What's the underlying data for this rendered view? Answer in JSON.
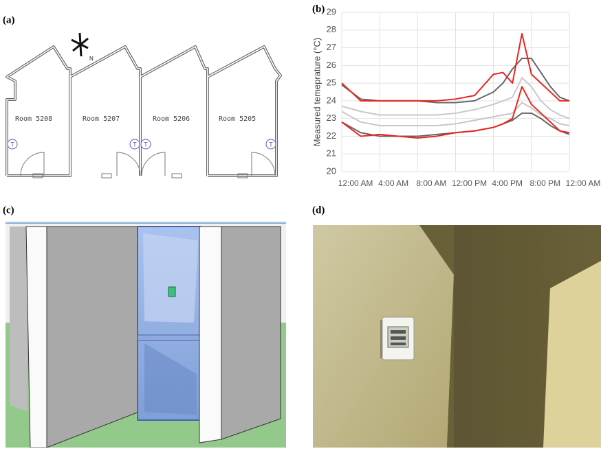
{
  "panels": {
    "a": "(a)",
    "b": "(b)",
    "c": "(c)",
    "d": "(d)"
  },
  "floor_plan": {
    "rooms": [
      "Room 5208",
      "Room 5207",
      "Room 5206",
      "Room 5205"
    ],
    "north": "N",
    "sensor_marker": "T"
  },
  "chart_data": {
    "type": "line",
    "y_label": "Measured temeprature (°C)",
    "x": [
      0,
      2,
      4,
      6,
      8,
      10,
      12,
      14,
      16,
      17,
      18,
      19,
      20,
      21,
      22,
      23,
      24
    ],
    "xlim": [
      0,
      24
    ],
    "xticks": [
      {
        "value": 0,
        "label": "12:00 AM"
      },
      {
        "value": 4,
        "label": "4:00 AM"
      },
      {
        "value": 8,
        "label": "8:00 AM"
      },
      {
        "value": 12,
        "label": "12:00 PM"
      },
      {
        "value": 16,
        "label": "4:00 PM"
      },
      {
        "value": 20,
        "label": "8:00 PM"
      },
      {
        "value": 24,
        "label": "12:00 AM"
      }
    ],
    "ylim": [
      20,
      29
    ],
    "yticks": [
      20,
      21,
      22,
      23,
      24,
      25,
      26,
      27,
      28,
      29
    ],
    "grid": true,
    "series": [
      {
        "color": "#c8c8c8",
        "values": [
          23.7,
          23.4,
          23.2,
          23.2,
          23.2,
          23.2,
          23.3,
          23.5,
          23.8,
          24,
          24.2,
          25.3,
          24.8,
          24,
          23.5,
          23.2,
          23
        ]
      },
      {
        "color": "#c8c8c8",
        "values": [
          23.4,
          22.8,
          22.6,
          22.6,
          22.6,
          22.6,
          22.7,
          22.9,
          23.1,
          23.2,
          23.3,
          23.9,
          23.6,
          23.2,
          23,
          22.7,
          22.6
        ]
      },
      {
        "color": "#666666",
        "values": [
          24.9,
          24.1,
          24,
          24,
          24,
          23.9,
          23.9,
          24,
          24.5,
          25,
          25.8,
          26.4,
          26.4,
          25.6,
          24.8,
          24.2,
          24
        ]
      },
      {
        "color": "#666666",
        "values": [
          22.8,
          22.2,
          22,
          22,
          22,
          22.1,
          22.2,
          22.3,
          22.5,
          22.7,
          22.9,
          23.3,
          23.3,
          23,
          22.6,
          22.3,
          22.1
        ]
      },
      {
        "color": "#e8261e",
        "values": [
          25,
          24,
          24,
          24,
          24,
          24,
          24.1,
          24.3,
          25.5,
          25.6,
          25,
          27.8,
          25.5,
          25,
          24.5,
          24,
          24
        ]
      },
      {
        "color": "#e8261e",
        "values": [
          22.8,
          22,
          22.1,
          22,
          21.9,
          22,
          22.2,
          22.3,
          22.5,
          22.7,
          23,
          24.8,
          23.8,
          23.3,
          22.8,
          22.3,
          22.2
        ]
      }
    ]
  }
}
